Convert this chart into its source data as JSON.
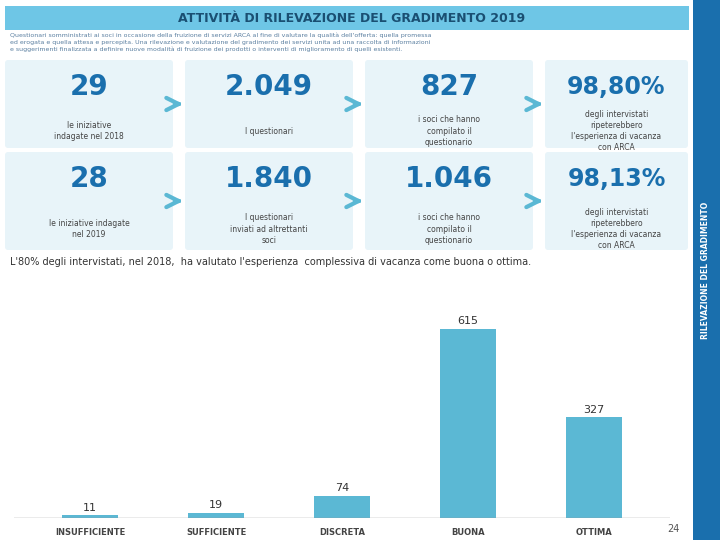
{
  "title": "ATTIVITÀ DI RILEVAZIONE DEL GRADIMENTO 2019",
  "title_bg": "#6ec6e6",
  "title_color": "#1a4f72",
  "sidebar_color": "#1a6fad",
  "sidebar_text": "RILEVAZIONE DEL GRADIMENTO",
  "body_bg": "#ffffff",
  "subtitle_text": "Questionari somministrati ai soci in occasione della fruizione di servizi ARCA al fine di valutare la qualità dell'offerta: quella promessa\ned erogata e quella attesa e percepita. Una rilevazione e valutazione del gradimento dei servizi unita ad una raccolta di informazioni\ne suggerimenti finalizzata a definire nuove modalità di fruizione dei prodotti o interventi di miglioramento di quelli esistenti.",
  "row1": {
    "num1": "29",
    "label1": "le iniziative\nindagate nel 2018",
    "num2": "2.049",
    "label2": "I questionari",
    "num3": "827",
    "label3": "i soci che hanno\ncompilato il\nquestionario",
    "num4": "98,80%",
    "label4": "degli intervistati\nripeterebbero\nl'esperienza di vacanza\ncon ARCA"
  },
  "row2": {
    "num1": "28",
    "label1": "le iniziative indagate\nnel 2019",
    "num2": "1.840",
    "label2": "I questionari\ninviati ad altrettanti\nsoci",
    "num3": "1.046",
    "label3": "i soci che hanno\ncompilato il\nquestionario",
    "num4": "98,13%",
    "label4": "degli intervistati\nripeterebbero\nl'esperienza di vacanza\ncon ARCA"
  },
  "bottom_text": "L'80% degli intervistati, nel 2018,  ha valutato l'esperienza  complessiva di vacanza come buona o ottima.",
  "bar_categories": [
    "INSUFFICIENTE",
    "SUFFICIENTE",
    "DISCRETA",
    "BUONA",
    "OTTIMA"
  ],
  "bar_values": [
    11,
    19,
    74,
    615,
    327
  ],
  "bar_color": "#5bb8d4",
  "box_bg": "#e8f4f9",
  "arrow_color": "#5bb8d4",
  "num_color_big": "#1a6fad",
  "label_color": "#444444",
  "page_num": "24"
}
